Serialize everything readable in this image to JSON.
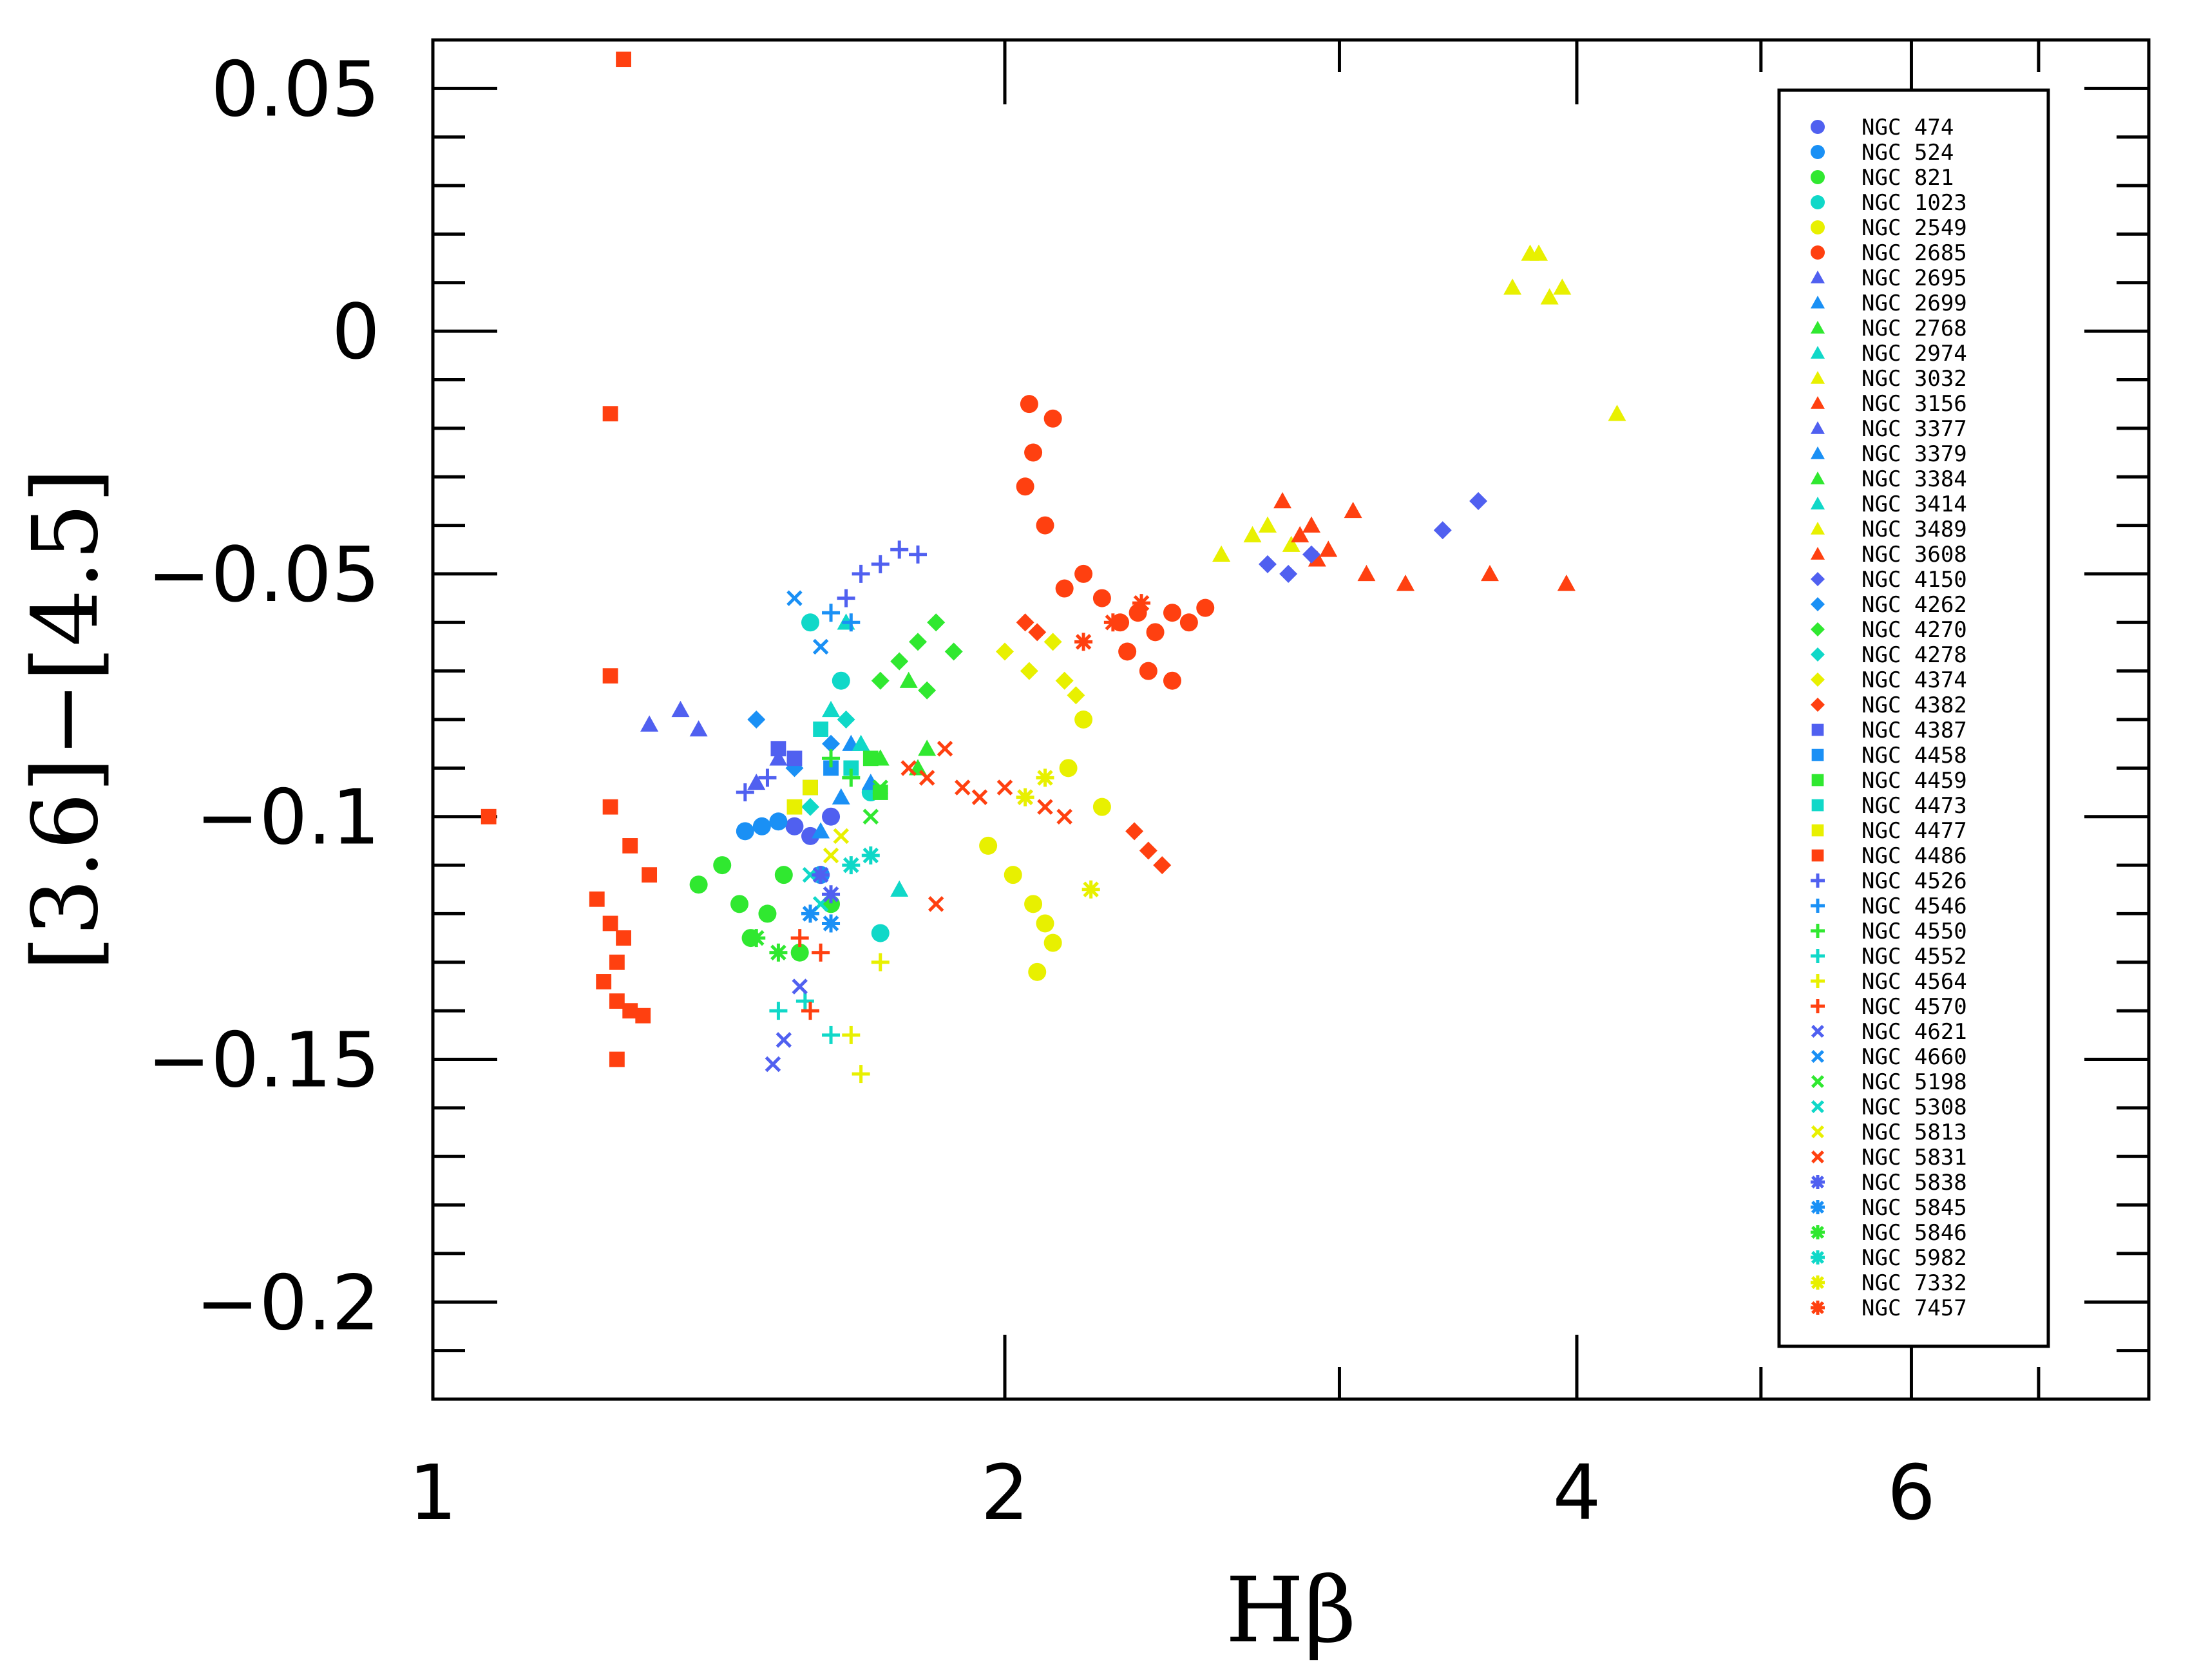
{
  "chart_data": {
    "type": "scatter",
    "title": "",
    "xlabel": "Hβ",
    "ylabel": "[3.6]−[4.5]",
    "x_scale": "log",
    "xlim": [
      1,
      8
    ],
    "ylim": [
      -0.22,
      0.06
    ],
    "x_ticks": [
      1,
      2,
      4,
      6
    ],
    "x_tick_labels": [
      "1",
      "2",
      "4",
      "6"
    ],
    "y_ticks": [
      0.05,
      0,
      -0.05,
      -0.1,
      -0.15,
      -0.2
    ],
    "y_tick_labels": [
      "0.05",
      "0",
      "−0.05",
      "−0.1",
      "−0.15",
      "−0.2"
    ],
    "grid": false,
    "legend_position": "right",
    "series": [
      {
        "name": "NGC  474",
        "marker": "circle",
        "color": "#5060f0",
        "points": [
          [
            1.55,
            -0.102
          ],
          [
            1.62,
            -0.1
          ],
          [
            1.58,
            -0.104
          ]
        ]
      },
      {
        "name": "NGC  524",
        "marker": "circle",
        "color": "#1a90f5",
        "points": [
          [
            1.49,
            -0.102
          ],
          [
            1.52,
            -0.101
          ],
          [
            1.46,
            -0.103
          ],
          [
            1.6,
            -0.112
          ]
        ]
      },
      {
        "name": "NGC  821",
        "marker": "circle",
        "color": "#30e830",
        "points": [
          [
            1.38,
            -0.114
          ],
          [
            1.42,
            -0.11
          ],
          [
            1.45,
            -0.118
          ],
          [
            1.47,
            -0.125
          ],
          [
            1.5,
            -0.12
          ],
          [
            1.53,
            -0.112
          ],
          [
            1.56,
            -0.128
          ],
          [
            1.62,
            -0.118
          ]
        ]
      },
      {
        "name": "NGC 1023",
        "marker": "circle",
        "color": "#10d8c8",
        "points": [
          [
            1.58,
            -0.06
          ],
          [
            1.64,
            -0.072
          ],
          [
            1.7,
            -0.095
          ],
          [
            1.72,
            -0.124
          ]
        ]
      },
      {
        "name": "NGC 2549",
        "marker": "circle",
        "color": "#e8f000",
        "points": [
          [
            1.96,
            -0.106
          ],
          [
            2.02,
            -0.112
          ],
          [
            2.07,
            -0.118
          ],
          [
            2.1,
            -0.122
          ],
          [
            2.12,
            -0.126
          ],
          [
            2.08,
            -0.132
          ],
          [
            2.16,
            -0.09
          ],
          [
            2.2,
            -0.08
          ],
          [
            2.25,
            -0.098
          ]
        ]
      },
      {
        "name": "NGC 2685",
        "marker": "circle",
        "color": "#ff4010",
        "points": [
          [
            2.06,
            -0.015
          ],
          [
            2.07,
            -0.025
          ],
          [
            2.12,
            -0.018
          ],
          [
            2.05,
            -0.032
          ],
          [
            2.1,
            -0.04
          ],
          [
            2.15,
            -0.053
          ],
          [
            2.2,
            -0.05
          ],
          [
            2.25,
            -0.055
          ],
          [
            2.3,
            -0.06
          ],
          [
            2.35,
            -0.058
          ],
          [
            2.4,
            -0.062
          ],
          [
            2.45,
            -0.058
          ],
          [
            2.5,
            -0.06
          ],
          [
            2.55,
            -0.057
          ],
          [
            2.38,
            -0.07
          ],
          [
            2.45,
            -0.072
          ],
          [
            2.32,
            -0.066
          ]
        ]
      },
      {
        "name": "NGC 2695",
        "marker": "triangle",
        "color": "#5060f0",
        "points": [
          [
            1.3,
            -0.081
          ],
          [
            1.35,
            -0.078
          ],
          [
            1.38,
            -0.082
          ]
        ]
      },
      {
        "name": "NGC 2699",
        "marker": "triangle",
        "color": "#1a90f5",
        "points": [
          [
            1.66,
            -0.085
          ],
          [
            1.7,
            -0.093
          ]
        ]
      },
      {
        "name": "NGC 2768",
        "marker": "triangle",
        "color": "#30e830",
        "points": [
          [
            1.78,
            -0.072
          ],
          [
            1.82,
            -0.086
          ]
        ]
      },
      {
        "name": "NGC 2974",
        "marker": "triangle",
        "color": "#10d8c8",
        "points": [
          [
            1.65,
            -0.06
          ],
          [
            1.76,
            -0.115
          ]
        ]
      },
      {
        "name": "NGC 3032",
        "marker": "triangle",
        "color": "#e8f000",
        "points": [
          [
            3.7,
            0.009
          ],
          [
            3.78,
            0.016
          ],
          [
            3.82,
            0.016
          ],
          [
            3.87,
            0.007
          ],
          [
            3.93,
            0.009
          ],
          [
            4.2,
            -0.017
          ]
        ]
      },
      {
        "name": "NGC 3156",
        "marker": "triangle",
        "color": "#ff4010",
        "points": [
          [
            2.8,
            -0.035
          ],
          [
            2.9,
            -0.04
          ],
          [
            2.96,
            -0.045
          ],
          [
            3.05,
            -0.037
          ],
          [
            3.1,
            -0.05
          ],
          [
            3.25,
            -0.052
          ],
          [
            3.6,
            -0.05
          ],
          [
            3.95,
            -0.052
          ]
        ]
      },
      {
        "name": "NGC 3377",
        "marker": "triangle",
        "color": "#5060f0",
        "points": [
          [
            1.48,
            -0.093
          ],
          [
            1.52,
            -0.088
          ]
        ]
      },
      {
        "name": "NGC 3379",
        "marker": "triangle",
        "color": "#1a90f5",
        "points": [
          [
            1.6,
            -0.103
          ],
          [
            1.64,
            -0.096
          ]
        ]
      },
      {
        "name": "NGC 3384",
        "marker": "triangle",
        "color": "#30e830",
        "points": [
          [
            1.72,
            -0.088
          ],
          [
            1.8,
            -0.09
          ]
        ]
      },
      {
        "name": "NGC 3414",
        "marker": "triangle",
        "color": "#10d8c8",
        "points": [
          [
            1.62,
            -0.078
          ],
          [
            1.68,
            -0.085
          ]
        ]
      },
      {
        "name": "NGC 3489",
        "marker": "triangle",
        "color": "#e8f000",
        "points": [
          [
            2.6,
            -0.046
          ],
          [
            2.7,
            -0.042
          ],
          [
            2.75,
            -0.04
          ],
          [
            2.83,
            -0.044
          ]
        ]
      },
      {
        "name": "NGC 3608",
        "marker": "triangle",
        "color": "#ff4010",
        "points": [
          [
            2.86,
            -0.042
          ],
          [
            2.92,
            -0.047
          ]
        ]
      },
      {
        "name": "NGC 4150",
        "marker": "diamond",
        "color": "#5060f0",
        "points": [
          [
            2.75,
            -0.048
          ],
          [
            2.82,
            -0.05
          ],
          [
            2.9,
            -0.046
          ],
          [
            3.4,
            -0.041
          ],
          [
            3.55,
            -0.035
          ]
        ]
      },
      {
        "name": "NGC 4262",
        "marker": "diamond",
        "color": "#1a90f5",
        "points": [
          [
            1.48,
            -0.08
          ],
          [
            1.55,
            -0.09
          ],
          [
            1.62,
            -0.085
          ]
        ]
      },
      {
        "name": "NGC 4270",
        "marker": "diamond",
        "color": "#30e830",
        "points": [
          [
            1.72,
            -0.072
          ],
          [
            1.76,
            -0.068
          ],
          [
            1.8,
            -0.064
          ],
          [
            1.84,
            -0.06
          ],
          [
            1.88,
            -0.066
          ],
          [
            1.82,
            -0.074
          ]
        ]
      },
      {
        "name": "NGC 4278",
        "marker": "diamond",
        "color": "#10d8c8",
        "points": [
          [
            1.58,
            -0.098
          ],
          [
            1.65,
            -0.08
          ]
        ]
      },
      {
        "name": "NGC 4374",
        "marker": "diamond",
        "color": "#e8f000",
        "points": [
          [
            2.0,
            -0.066
          ],
          [
            2.06,
            -0.07
          ],
          [
            2.12,
            -0.064
          ],
          [
            2.15,
            -0.072
          ],
          [
            2.18,
            -0.075
          ]
        ]
      },
      {
        "name": "NGC 4382",
        "marker": "diamond",
        "color": "#ff4010",
        "points": [
          [
            2.05,
            -0.06
          ],
          [
            2.08,
            -0.062
          ],
          [
            2.34,
            -0.103
          ],
          [
            2.38,
            -0.107
          ],
          [
            2.42,
            -0.11
          ]
        ]
      },
      {
        "name": "NGC 4387",
        "marker": "square",
        "color": "#5060f0",
        "points": [
          [
            1.52,
            -0.086
          ],
          [
            1.55,
            -0.088
          ]
        ]
      },
      {
        "name": "NGC 4458",
        "marker": "square",
        "color": "#1a90f5",
        "points": [
          [
            1.58,
            -0.094
          ],
          [
            1.62,
            -0.09
          ]
        ]
      },
      {
        "name": "NGC 4459",
        "marker": "square",
        "color": "#30e830",
        "points": [
          [
            1.7,
            -0.088
          ],
          [
            1.72,
            -0.095
          ]
        ]
      },
      {
        "name": "NGC 4473",
        "marker": "square",
        "color": "#10d8c8",
        "points": [
          [
            1.6,
            -0.082
          ],
          [
            1.66,
            -0.09
          ]
        ]
      },
      {
        "name": "NGC 4477",
        "marker": "square",
        "color": "#e8f000",
        "points": [
          [
            1.55,
            -0.098
          ],
          [
            1.58,
            -0.094
          ]
        ]
      },
      {
        "name": "NGC 4486",
        "marker": "square",
        "color": "#ff4010",
        "points": [
          [
            1.26,
            0.056
          ],
          [
            1.24,
            -0.017
          ],
          [
            1.07,
            -0.1
          ],
          [
            1.24,
            -0.071
          ],
          [
            1.24,
            -0.098
          ],
          [
            1.27,
            -0.106
          ],
          [
            1.22,
            -0.117
          ],
          [
            1.24,
            -0.122
          ],
          [
            1.26,
            -0.125
          ],
          [
            1.25,
            -0.13
          ],
          [
            1.23,
            -0.134
          ],
          [
            1.25,
            -0.138
          ],
          [
            1.27,
            -0.14
          ],
          [
            1.29,
            -0.141
          ],
          [
            1.25,
            -0.15
          ],
          [
            1.3,
            -0.112
          ]
        ]
      },
      {
        "name": "NGC 4526",
        "marker": "plus",
        "color": "#5060f0",
        "points": [
          [
            1.68,
            -0.05
          ],
          [
            1.72,
            -0.048
          ],
          [
            1.76,
            -0.045
          ],
          [
            1.8,
            -0.046
          ],
          [
            1.65,
            -0.055
          ],
          [
            1.46,
            -0.095
          ],
          [
            1.5,
            -0.092
          ]
        ]
      },
      {
        "name": "NGC 4546",
        "marker": "plus",
        "color": "#1a90f5",
        "points": [
          [
            1.62,
            -0.058
          ],
          [
            1.66,
            -0.06
          ]
        ]
      },
      {
        "name": "NGC 4550",
        "marker": "plus",
        "color": "#30e830",
        "points": [
          [
            1.62,
            -0.088
          ],
          [
            1.66,
            -0.092
          ]
        ]
      },
      {
        "name": "NGC 4552",
        "marker": "plus",
        "color": "#10d8c8",
        "points": [
          [
            1.52,
            -0.14
          ],
          [
            1.57,
            -0.138
          ],
          [
            1.62,
            -0.145
          ]
        ]
      },
      {
        "name": "NGC 4564",
        "marker": "plus",
        "color": "#e8f000",
        "points": [
          [
            1.66,
            -0.145
          ],
          [
            1.68,
            -0.153
          ],
          [
            1.72,
            -0.13
          ]
        ]
      },
      {
        "name": "NGC 4570",
        "marker": "plus",
        "color": "#ff4010",
        "points": [
          [
            1.56,
            -0.125
          ],
          [
            1.58,
            -0.14
          ],
          [
            1.6,
            -0.128
          ]
        ]
      },
      {
        "name": "NGC 4621",
        "marker": "cross",
        "color": "#5060f0",
        "points": [
          [
            1.51,
            -0.151
          ],
          [
            1.53,
            -0.146
          ],
          [
            1.56,
            -0.135
          ]
        ]
      },
      {
        "name": "NGC 4660",
        "marker": "cross",
        "color": "#1a90f5",
        "points": [
          [
            1.55,
            -0.055
          ],
          [
            1.6,
            -0.065
          ]
        ]
      },
      {
        "name": "NGC 5198",
        "marker": "cross",
        "color": "#30e830",
        "points": [
          [
            1.7,
            -0.1
          ],
          [
            1.72,
            -0.094
          ]
        ]
      },
      {
        "name": "NGC 5308",
        "marker": "cross",
        "color": "#10d8c8",
        "points": [
          [
            1.58,
            -0.112
          ],
          [
            1.6,
            -0.118
          ]
        ]
      },
      {
        "name": "NGC 5813",
        "marker": "cross",
        "color": "#e8f000",
        "points": [
          [
            1.62,
            -0.108
          ],
          [
            1.64,
            -0.104
          ]
        ]
      },
      {
        "name": "NGC 5831",
        "marker": "cross",
        "color": "#ff4010",
        "points": [
          [
            1.78,
            -0.09
          ],
          [
            1.82,
            -0.092
          ],
          [
            1.86,
            -0.086
          ],
          [
            1.9,
            -0.094
          ],
          [
            1.94,
            -0.096
          ],
          [
            2.0,
            -0.094
          ],
          [
            2.05,
            -0.096
          ],
          [
            2.1,
            -0.098
          ],
          [
            2.15,
            -0.1
          ],
          [
            1.84,
            -0.118
          ]
        ]
      },
      {
        "name": "NGC 5838",
        "marker": "asterisk",
        "color": "#5060f0",
        "points": [
          [
            1.6,
            -0.112
          ],
          [
            1.62,
            -0.116
          ]
        ]
      },
      {
        "name": "NGC 5845",
        "marker": "asterisk",
        "color": "#1a90f5",
        "points": [
          [
            1.58,
            -0.12
          ],
          [
            1.62,
            -0.122
          ]
        ]
      },
      {
        "name": "NGC 5846",
        "marker": "asterisk",
        "color": "#30e830",
        "points": [
          [
            1.48,
            -0.125
          ],
          [
            1.52,
            -0.128
          ]
        ]
      },
      {
        "name": "NGC 5982",
        "marker": "asterisk",
        "color": "#10d8c8",
        "points": [
          [
            1.66,
            -0.11
          ],
          [
            1.7,
            -0.108
          ]
        ]
      },
      {
        "name": "NGC 7332",
        "marker": "asterisk",
        "color": "#e8f000",
        "points": [
          [
            2.05,
            -0.096
          ],
          [
            2.1,
            -0.092
          ],
          [
            2.22,
            -0.115
          ]
        ]
      },
      {
        "name": "NGC 7457",
        "marker": "asterisk",
        "color": "#ff4010",
        "points": [
          [
            2.2,
            -0.064
          ],
          [
            2.28,
            -0.06
          ],
          [
            2.36,
            -0.056
          ]
        ]
      }
    ]
  }
}
